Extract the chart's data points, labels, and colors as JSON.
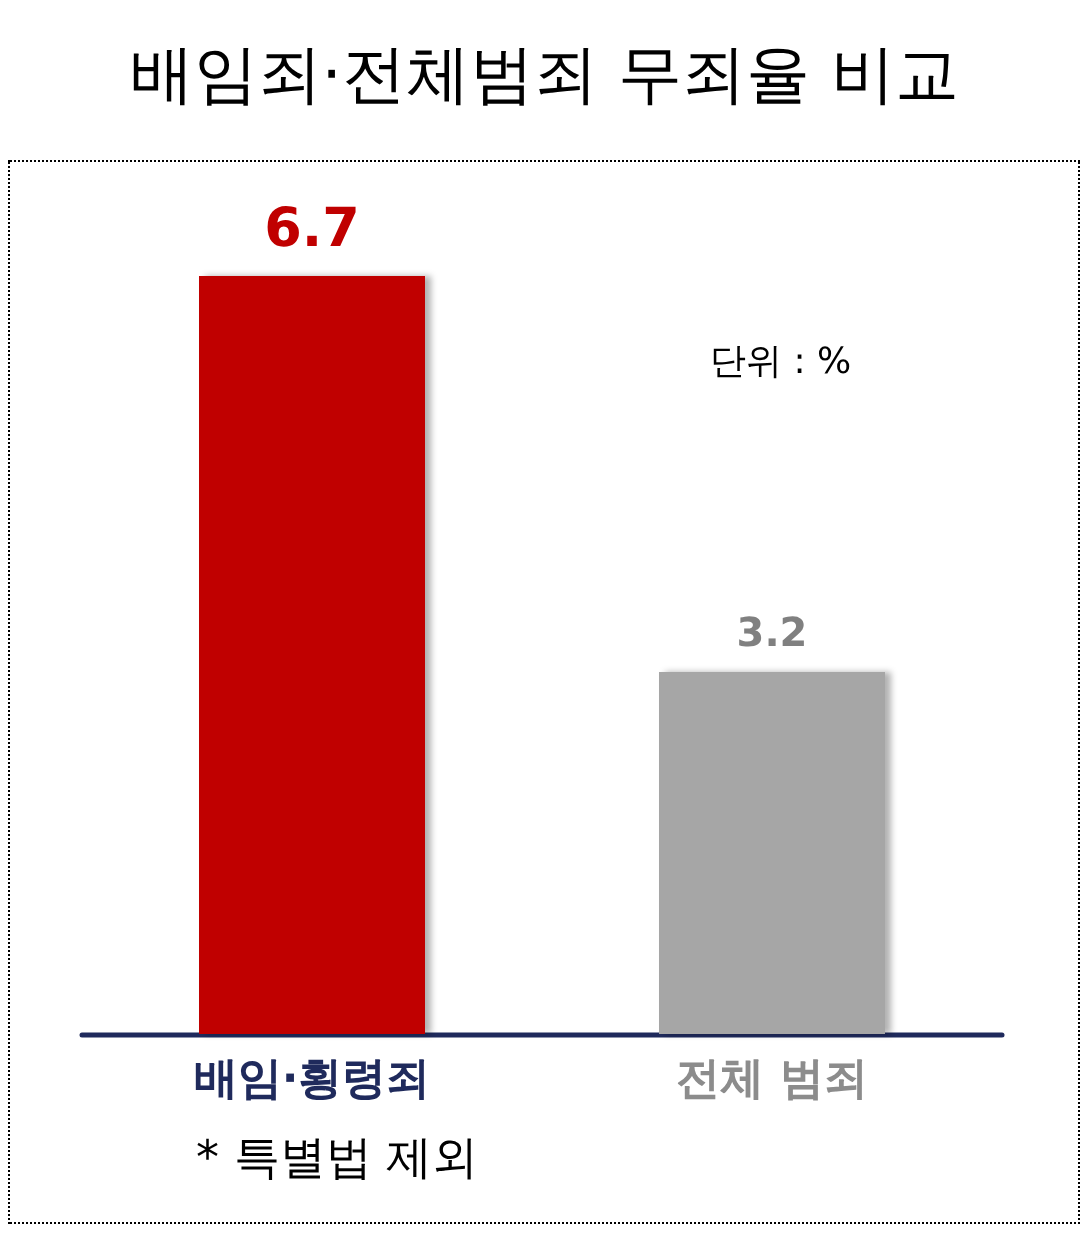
{
  "chart_data": {
    "type": "bar",
    "title": "배임죄·전체범죄 무죄율 비교",
    "categories": [
      "배임·횡령죄",
      "전체 범죄"
    ],
    "values": [
      6.7,
      3.2
    ],
    "colors": [
      "#c00000",
      "#a6a6a6"
    ],
    "data_labels": true,
    "grid": false,
    "annotations": [
      "단위 : %",
      "* 특별법 제외"
    ]
  }
}
